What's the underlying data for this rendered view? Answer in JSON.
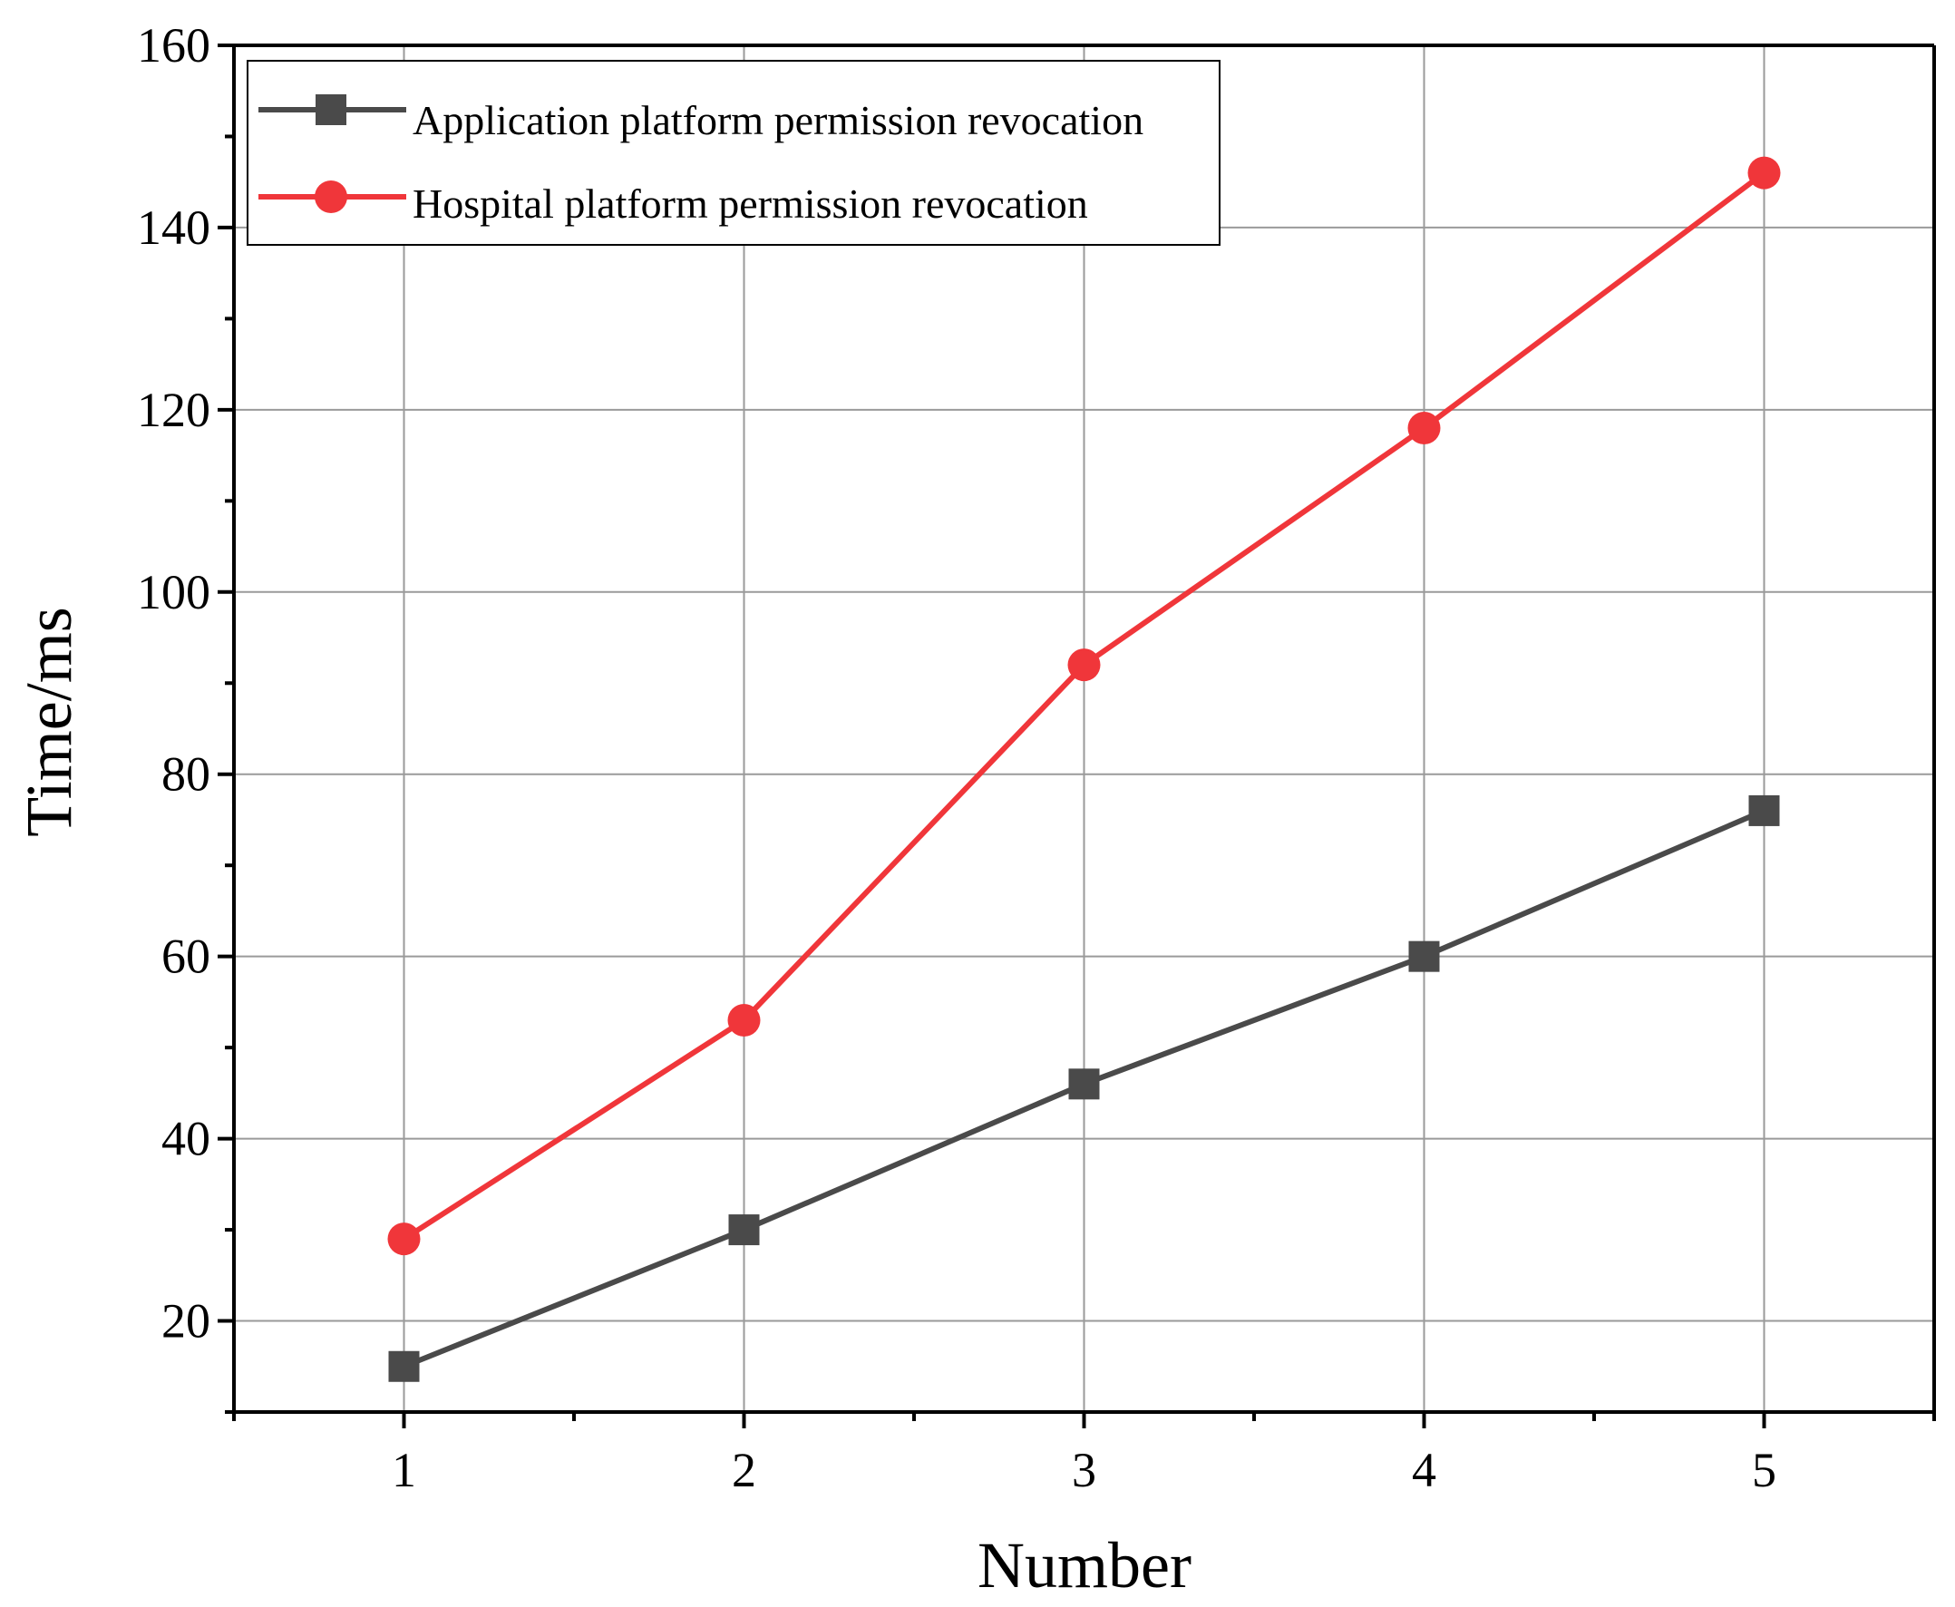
{
  "chart_data": {
    "type": "line",
    "xlabel": "Number",
    "ylabel": "Time/ms",
    "xlim": [
      0.5,
      5.5
    ],
    "ylim": [
      10,
      160
    ],
    "x_ticks": [
      1,
      2,
      3,
      4,
      5
    ],
    "y_ticks": [
      20,
      40,
      60,
      80,
      100,
      120,
      140,
      160
    ],
    "grid": true,
    "legend_position": "top-left",
    "x": [
      1,
      2,
      3,
      4,
      5
    ],
    "series": [
      {
        "name": "Application platform permission revocation",
        "values": [
          15,
          30,
          46,
          60,
          76
        ],
        "color": "#4a4a4a",
        "marker": "square"
      },
      {
        "name": "Hospital platform permission revocation",
        "values": [
          29,
          53,
          92,
          118,
          146
        ],
        "color": "#f0363a",
        "marker": "circle"
      }
    ]
  }
}
